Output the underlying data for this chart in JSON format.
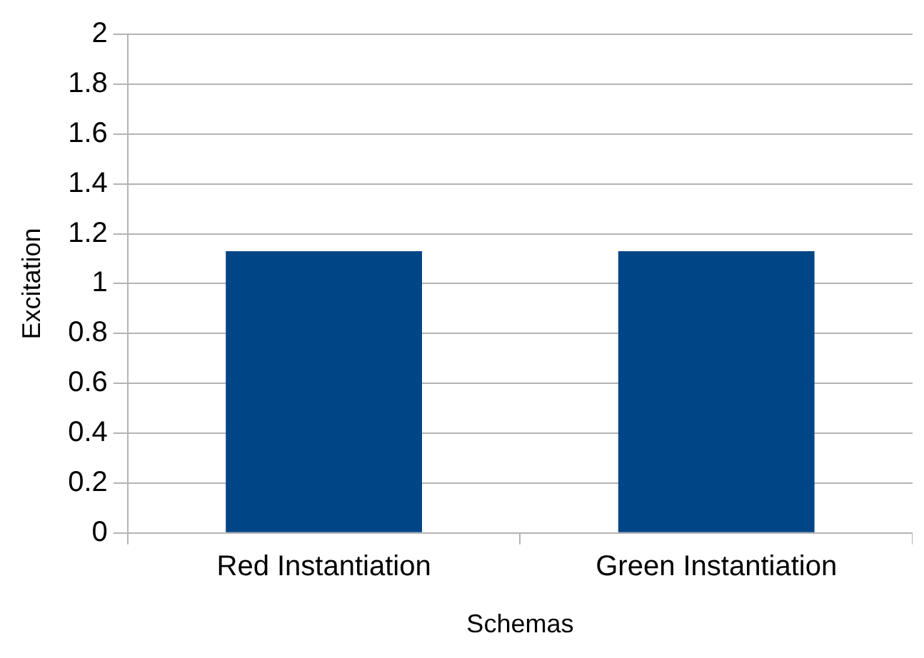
{
  "chart_data": {
    "type": "bar",
    "xlabel": "Schemas",
    "ylabel": "Excitation",
    "categories": [
      "Red Instantiation",
      "Green Instantiation"
    ],
    "series": [
      {
        "color": "#004586",
        "values": [
          1.13,
          1.13
        ]
      }
    ],
    "ylim": [
      0,
      2
    ],
    "yticks": [
      0,
      {
        "value": 0.2,
        "label": "0.2"
      },
      {
        "value": 0.4,
        "label": "0.4"
      },
      {
        "value": 0.6,
        "label": "0.6"
      },
      {
        "value": 0.8,
        "label": "0.8"
      },
      1,
      {
        "value": 1.2,
        "label": "1.2"
      },
      {
        "value": 1.4,
        "label": "1.4"
      },
      {
        "value": 1.6,
        "label": "1.6"
      },
      {
        "value": 1.8,
        "label": "1.8"
      },
      2
    ],
    "grid": "y",
    "legend": false
  }
}
